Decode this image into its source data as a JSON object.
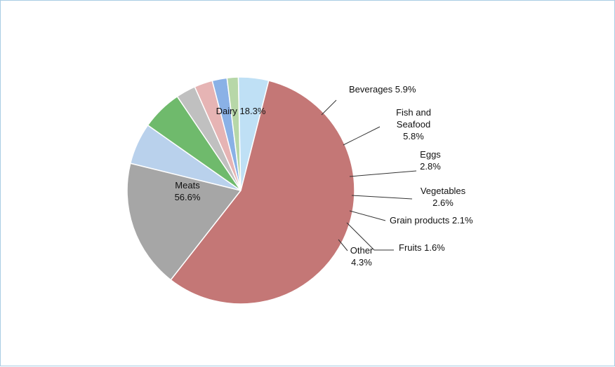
{
  "chart_data": {
    "type": "pie",
    "title": "",
    "start_angle_deg": 232,
    "direction": "clockwise",
    "slices": [
      {
        "label": "Dairy",
        "value": 18.3,
        "display": "Dairy 18.3%",
        "color": "#a6a6a6"
      },
      {
        "label": "Beverages",
        "value": 5.9,
        "display": "Beverages 5.9%",
        "color": "#b9d1ec"
      },
      {
        "label": "Fish and Seafood",
        "value": 5.8,
        "display": [
          "Fish and",
          "Seafood",
          "5.8%"
        ],
        "color": "#6fba6c"
      },
      {
        "label": "Eggs",
        "value": 2.8,
        "display": [
          "Eggs",
          "2.8%"
        ],
        "color": "#c0c0c0"
      },
      {
        "label": "Vegetables",
        "value": 2.6,
        "display": [
          "Vegetables",
          "2.6%"
        ],
        "color": "#e6b4b4"
      },
      {
        "label": "Grain products",
        "value": 2.1,
        "display": "Grain products 2.1%",
        "color": "#8ab1e6"
      },
      {
        "label": "Fruits",
        "value": 1.6,
        "display": "Fruits 1.6%",
        "color": "#b7d7a8"
      },
      {
        "label": "Other",
        "value": 4.3,
        "display": [
          "Other",
          "4.3%"
        ],
        "color": "#bfe0f5"
      },
      {
        "label": "Meats",
        "value": 56.6,
        "display": [
          "Meats",
          "56.6%"
        ],
        "color": "#c47776"
      }
    ]
  }
}
